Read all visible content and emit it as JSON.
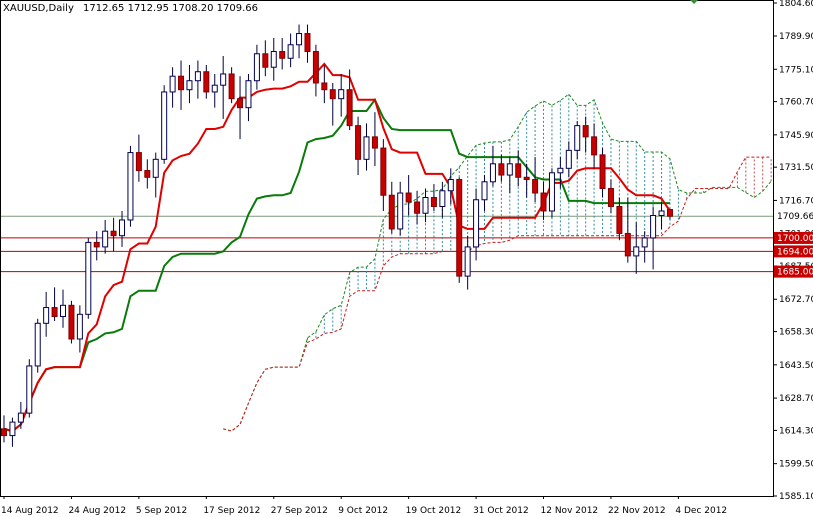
{
  "chart_data": {
    "type": "candlestick",
    "title": "XAUUSD,Daily",
    "ohlc_readout": "1712.65 1712.95 1708.20 1709.66",
    "last_price": "1709.66",
    "y_range": [
      1585.1,
      1804.6
    ],
    "y_ticks": [
      "1804.60",
      "1789.90",
      "1775.10",
      "1760.70",
      "1745.90",
      "1731.50",
      "1716.70",
      "1701.90",
      "1687.50",
      "1672.70",
      "1658.30",
      "1643.50",
      "1628.70",
      "1614.30",
      "1599.50",
      "1585.10"
    ],
    "x_ticks": [
      "14 Aug 2012",
      "24 Aug 2012",
      "5 Sep 2012",
      "17 Sep 2012",
      "27 Sep 2012",
      "9 Oct 2012",
      "19 Oct 2012",
      "31 Oct 2012",
      "12 Nov 2012",
      "22 Nov 2012",
      "4 Dec 2012"
    ],
    "x_tick_index": [
      0,
      8,
      16,
      24,
      32,
      40,
      48,
      56,
      64,
      72,
      80
    ],
    "horizontal_levels": [
      {
        "label": "1700.00",
        "value": 1700.0
      },
      {
        "label": "1694.00",
        "value": 1694.0
      },
      {
        "label": "1685.00",
        "value": 1685.0
      }
    ],
    "candles": [
      [
        1615,
        1621,
        1609,
        1612
      ],
      [
        1612,
        1620,
        1607,
        1618
      ],
      [
        1618,
        1627,
        1615,
        1622
      ],
      [
        1622,
        1646,
        1620,
        1643
      ],
      [
        1643,
        1664,
        1640,
        1662
      ],
      [
        1662,
        1676,
        1656,
        1669
      ],
      [
        1669,
        1678,
        1663,
        1665
      ],
      [
        1665,
        1677,
        1660,
        1670
      ],
      [
        1670,
        1672,
        1653,
        1655
      ],
      [
        1655,
        1670,
        1649,
        1666
      ],
      [
        1666,
        1700,
        1664,
        1698
      ],
      [
        1698,
        1703,
        1690,
        1696
      ],
      [
        1696,
        1708,
        1693,
        1703
      ],
      [
        1703,
        1709,
        1694,
        1701
      ],
      [
        1701,
        1712,
        1696,
        1708
      ],
      [
        1708,
        1741,
        1705,
        1738
      ],
      [
        1738,
        1746,
        1725,
        1730
      ],
      [
        1730,
        1735,
        1722,
        1727
      ],
      [
        1727,
        1738,
        1718,
        1735
      ],
      [
        1735,
        1768,
        1733,
        1765
      ],
      [
        1765,
        1776,
        1758,
        1772
      ],
      [
        1772,
        1779,
        1757,
        1766
      ],
      [
        1766,
        1777,
        1760,
        1770
      ],
      [
        1770,
        1779,
        1762,
        1774
      ],
      [
        1774,
        1777,
        1762,
        1765
      ],
      [
        1765,
        1773,
        1758,
        1768
      ],
      [
        1768,
        1781,
        1753,
        1773
      ],
      [
        1773,
        1776,
        1760,
        1762
      ],
      [
        1762,
        1772,
        1744,
        1758
      ],
      [
        1758,
        1773,
        1752,
        1770
      ],
      [
        1770,
        1786,
        1766,
        1782
      ],
      [
        1782,
        1788,
        1772,
        1776
      ],
      [
        1776,
        1789,
        1770,
        1783
      ],
      [
        1783,
        1789,
        1775,
        1780
      ],
      [
        1780,
        1791,
        1776,
        1786
      ],
      [
        1786,
        1795,
        1780,
        1791
      ],
      [
        1791,
        1795,
        1778,
        1783
      ],
      [
        1783,
        1786,
        1763,
        1769
      ],
      [
        1769,
        1777,
        1760,
        1766
      ],
      [
        1766,
        1769,
        1750,
        1762
      ],
      [
        1762,
        1773,
        1754,
        1766
      ],
      [
        1766,
        1775,
        1748,
        1750
      ],
      [
        1750,
        1754,
        1728,
        1735
      ],
      [
        1735,
        1751,
        1730,
        1745
      ],
      [
        1745,
        1756,
        1732,
        1740
      ],
      [
        1740,
        1744,
        1712,
        1719
      ],
      [
        1719,
        1725,
        1702,
        1704
      ],
      [
        1704,
        1725,
        1701,
        1720
      ],
      [
        1720,
        1728,
        1710,
        1716
      ],
      [
        1716,
        1721,
        1706,
        1711
      ],
      [
        1711,
        1722,
        1707,
        1718
      ],
      [
        1718,
        1724,
        1712,
        1714
      ],
      [
        1714,
        1725,
        1709,
        1721
      ],
      [
        1721,
        1731,
        1715,
        1726
      ],
      [
        1726,
        1727,
        1680,
        1683
      ],
      [
        1683,
        1701,
        1677,
        1696
      ],
      [
        1696,
        1722,
        1690,
        1717
      ],
      [
        1717,
        1728,
        1712,
        1725
      ],
      [
        1725,
        1741,
        1723,
        1733
      ],
      [
        1733,
        1737,
        1725,
        1728
      ],
      [
        1728,
        1736,
        1720,
        1733
      ],
      [
        1733,
        1739,
        1723,
        1727
      ],
      [
        1727,
        1733,
        1718,
        1726
      ],
      [
        1726,
        1736,
        1716,
        1720
      ],
      [
        1720,
        1725,
        1708,
        1712
      ],
      [
        1712,
        1731,
        1709,
        1729
      ],
      [
        1729,
        1736,
        1722,
        1731
      ],
      [
        1731,
        1743,
        1727,
        1739
      ],
      [
        1739,
        1752,
        1735,
        1750
      ],
      [
        1750,
        1754,
        1738,
        1745
      ],
      [
        1745,
        1751,
        1731,
        1737
      ],
      [
        1737,
        1740,
        1718,
        1722
      ],
      [
        1722,
        1726,
        1711,
        1714
      ],
      [
        1714,
        1718,
        1699,
        1702
      ],
      [
        1702,
        1718,
        1689,
        1692
      ],
      [
        1692,
        1707,
        1684,
        1696
      ],
      [
        1696,
        1703,
        1689,
        1700
      ],
      [
        1700,
        1714,
        1686,
        1710
      ],
      [
        1710,
        1716,
        1704,
        1712
      ],
      [
        1712.65,
        1712.95,
        1708.2,
        1709.66
      ]
    ]
  }
}
